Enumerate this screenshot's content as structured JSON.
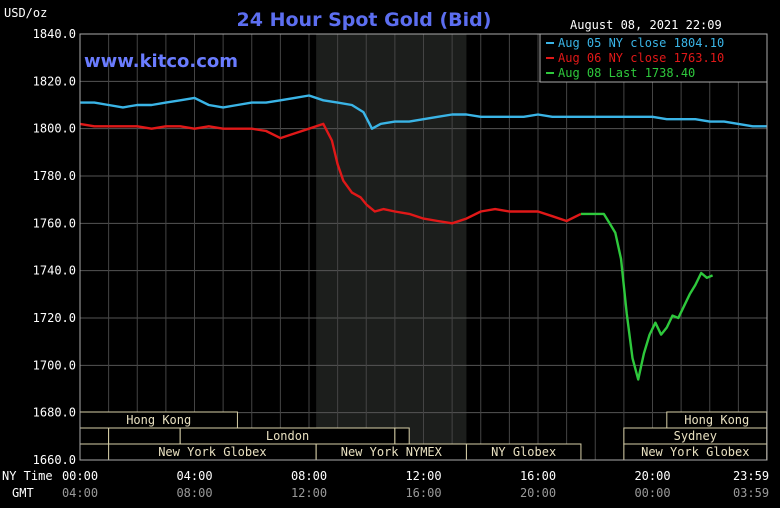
{
  "chart_data": {
    "type": "line",
    "title": "24 Hour Spot Gold (Bid)",
    "watermark": "www.kitco.com",
    "timestamp": "August 08, 2021 22:09",
    "ylabel": "USD/oz",
    "ylim": [
      1660,
      1840
    ],
    "yticks": [
      "1840.0",
      "1820.0",
      "1800.0",
      "1780.0",
      "1760.0",
      "1740.0",
      "1720.0",
      "1700.0",
      "1680.0",
      "1660.0"
    ],
    "xlim": [
      0,
      24
    ],
    "grid": true,
    "legend_position": "top-right",
    "time_axis": {
      "row1_label": "NY Time",
      "row2_label": "GMT",
      "ny": [
        "00:00",
        "04:00",
        "08:00",
        "12:00",
        "16:00",
        "20:00",
        "23:59"
      ],
      "gmt": [
        "04:00",
        "08:00",
        "12:00",
        "16:00",
        "20:00",
        "00:00",
        "03:59"
      ]
    },
    "shaded_hours": [
      8.25,
      13.5
    ],
    "markets": [
      {
        "label": "Hong Kong",
        "row": 0,
        "start": 0,
        "end": 5.5
      },
      {
        "label": "Hong Kong",
        "row": 0,
        "start": 20.5,
        "end": 23.99
      },
      {
        "label": "",
        "row": 1,
        "start": 0,
        "end": 1
      },
      {
        "label": "",
        "row": 1,
        "start": 1,
        "end": 3.5
      },
      {
        "label": "London",
        "row": 1,
        "start": 3.5,
        "end": 11
      },
      {
        "label": "",
        "row": 1,
        "start": 11,
        "end": 11.5
      },
      {
        "label": "Sydney",
        "row": 1,
        "start": 19,
        "end": 23.99
      },
      {
        "label": "New York Globex",
        "row": 2,
        "start": 1,
        "end": 8.25
      },
      {
        "label": "New York NYMEX",
        "row": 2,
        "start": 8.25,
        "end": 13.5
      },
      {
        "label": "NY Globex",
        "row": 2,
        "start": 13.5,
        "end": 17.5
      },
      {
        "label": "New York Globex",
        "row": 2,
        "start": 19,
        "end": 23.99
      }
    ],
    "series": [
      {
        "name": "Aug 05 NY close 1804.10",
        "color": "#3ab4e6",
        "x": [
          0,
          0.5,
          1,
          1.5,
          2,
          2.5,
          3,
          3.5,
          4,
          4.5,
          5,
          5.5,
          6,
          6.5,
          7,
          7.5,
          8,
          8.5,
          9,
          9.5,
          9.9,
          10.2,
          10.5,
          11,
          11.5,
          12,
          12.5,
          13,
          13.5,
          14,
          14.5,
          15,
          15.5,
          16,
          16.5,
          17,
          17.5,
          18,
          18.5,
          19,
          19.5,
          20,
          20.5,
          21,
          21.5,
          22,
          22.5,
          23,
          23.5,
          24
        ],
        "y": [
          1811,
          1811,
          1810,
          1809,
          1810,
          1810,
          1811,
          1812,
          1813,
          1810,
          1809,
          1810,
          1811,
          1811,
          1812,
          1813,
          1814,
          1812,
          1811,
          1810,
          1807,
          1800,
          1802,
          1803,
          1803,
          1804,
          1805,
          1806,
          1806,
          1805,
          1805,
          1805,
          1805,
          1806,
          1805,
          1805,
          1805,
          1805,
          1805,
          1805,
          1805,
          1805,
          1804,
          1804,
          1804,
          1803,
          1803,
          1802,
          1801,
          1801
        ]
      },
      {
        "name": "Aug 06 NY close 1763.10",
        "color": "#e01818",
        "x": [
          0,
          0.5,
          1,
          1.5,
          2,
          2.5,
          3,
          3.5,
          4,
          4.5,
          5,
          5.5,
          6,
          6.5,
          7,
          7.5,
          8,
          8.5,
          8.8,
          9,
          9.2,
          9.5,
          9.8,
          10,
          10.3,
          10.6,
          11,
          11.5,
          12,
          12.5,
          13,
          13.5,
          14,
          14.5,
          15,
          15.5,
          16,
          16.5,
          17,
          17.5
        ],
        "y": [
          1802,
          1801,
          1801,
          1801,
          1801,
          1800,
          1801,
          1801,
          1800,
          1801,
          1800,
          1800,
          1800,
          1799,
          1796,
          1798,
          1800,
          1802,
          1795,
          1785,
          1778,
          1773,
          1771,
          1768,
          1765,
          1766,
          1765,
          1764,
          1762,
          1761,
          1760,
          1762,
          1765,
          1766,
          1765,
          1765,
          1765,
          1763,
          1761,
          1764
        ]
      },
      {
        "name": "Aug 08 Last 1738.40",
        "color": "#2ec83c",
        "x": [
          17.5,
          18,
          18.3,
          18.5,
          18.7,
          18.9,
          19.1,
          19.3,
          19.5,
          19.7,
          19.9,
          20.1,
          20.3,
          20.5,
          20.7,
          20.9,
          21.1,
          21.3,
          21.5,
          21.7,
          21.9,
          22.1
        ],
        "y": [
          1764,
          1764,
          1764,
          1760,
          1756,
          1745,
          1722,
          1703,
          1694,
          1705,
          1713,
          1718,
          1713,
          1716,
          1721,
          1720,
          1725,
          1730,
          1734,
          1739,
          1737,
          1738
        ]
      }
    ]
  }
}
